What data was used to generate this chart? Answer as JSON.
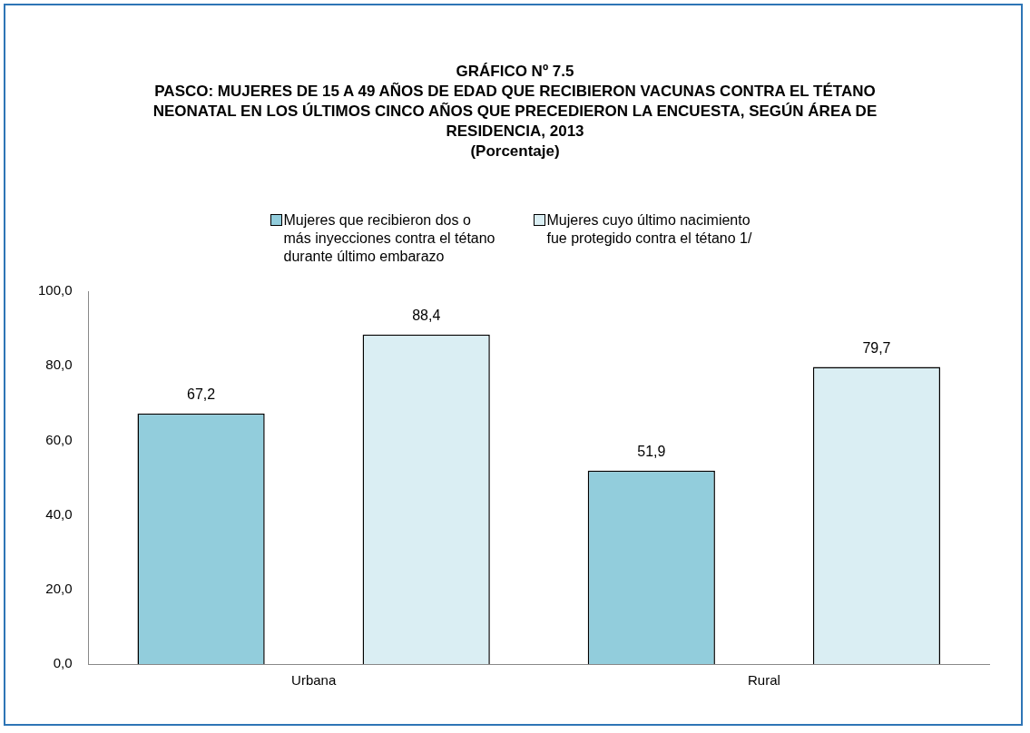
{
  "chart_data": {
    "type": "bar",
    "title": "GRÁFICO Nº 7.5",
    "subtitle": "PASCO: MUJERES DE 15 A 49 AÑOS DE EDAD QUE RECIBIERON VACUNAS CONTRA EL TÉTANO NEONATAL EN LOS ÚLTIMOS CINCO AÑOS QUE PRECEDIERON LA ENCUESTA, SEGÚN ÁREA DE RESIDENCIA, 2013",
    "annotations": [
      "(Porcentaje)"
    ],
    "categories": [
      "Urbana",
      "Rural"
    ],
    "series": [
      {
        "name": "Mujeres que recibieron dos o más inyecciones contra el tétano durante último embarazo",
        "color": "#92cddc",
        "values": [
          67.2,
          51.9
        ],
        "value_labels": [
          "67,2",
          "51,9"
        ]
      },
      {
        "name": "Mujeres cuyo último nacimiento fue protegido contra el tétano 1/",
        "color": "#daeef3",
        "values": [
          88.4,
          79.7
        ],
        "value_labels": [
          "88,4",
          "79,7"
        ]
      }
    ],
    "ylim": [
      0,
      100
    ],
    "yticks": [
      {
        "value": 0,
        "label": "0,0"
      },
      {
        "value": 20,
        "label": "20,0"
      },
      {
        "value": 40,
        "label": "40,0"
      },
      {
        "value": 60,
        "label": "60,0"
      },
      {
        "value": 80,
        "label": "80,0"
      },
      {
        "value": 100,
        "label": "100,0"
      }
    ],
    "grid": false,
    "legend": "top"
  }
}
